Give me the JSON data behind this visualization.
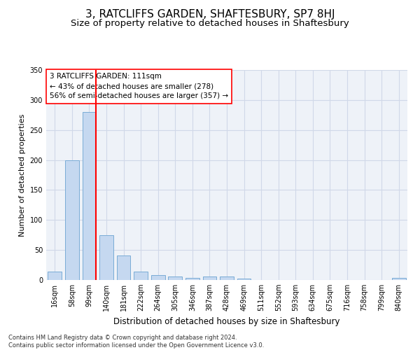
{
  "title": "3, RATCLIFFS GARDEN, SHAFTESBURY, SP7 8HJ",
  "subtitle": "Size of property relative to detached houses in Shaftesbury",
  "xlabel": "Distribution of detached houses by size in Shaftesbury",
  "ylabel": "Number of detached properties",
  "bin_labels": [
    "16sqm",
    "58sqm",
    "99sqm",
    "140sqm",
    "181sqm",
    "222sqm",
    "264sqm",
    "305sqm",
    "346sqm",
    "387sqm",
    "428sqm",
    "469sqm",
    "511sqm",
    "552sqm",
    "593sqm",
    "634sqm",
    "675sqm",
    "716sqm",
    "758sqm",
    "799sqm",
    "840sqm"
  ],
  "bar_heights": [
    14,
    200,
    280,
    75,
    41,
    14,
    8,
    6,
    4,
    6,
    6,
    2,
    0,
    0,
    0,
    0,
    0,
    0,
    0,
    0,
    3
  ],
  "bar_color": "#c5d8f0",
  "bar_edge_color": "#7aacd6",
  "red_line_bin_index": 2,
  "annotation_text": "3 RATCLIFFS GARDEN: 111sqm\n← 43% of detached houses are smaller (278)\n56% of semi-detached houses are larger (357) →",
  "annotation_box_color": "white",
  "annotation_box_edge_color": "red",
  "red_line_color": "red",
  "ylim": [
    0,
    350
  ],
  "yticks": [
    0,
    50,
    100,
    150,
    200,
    250,
    300,
    350
  ],
  "grid_color": "#d0d8e8",
  "background_color": "#eef2f8",
  "footnote": "Contains HM Land Registry data © Crown copyright and database right 2024.\nContains public sector information licensed under the Open Government Licence v3.0.",
  "title_fontsize": 11,
  "subtitle_fontsize": 9.5,
  "xlabel_fontsize": 8.5,
  "ylabel_fontsize": 8,
  "tick_fontsize": 7,
  "annotation_fontsize": 7.5,
  "footnote_fontsize": 6
}
